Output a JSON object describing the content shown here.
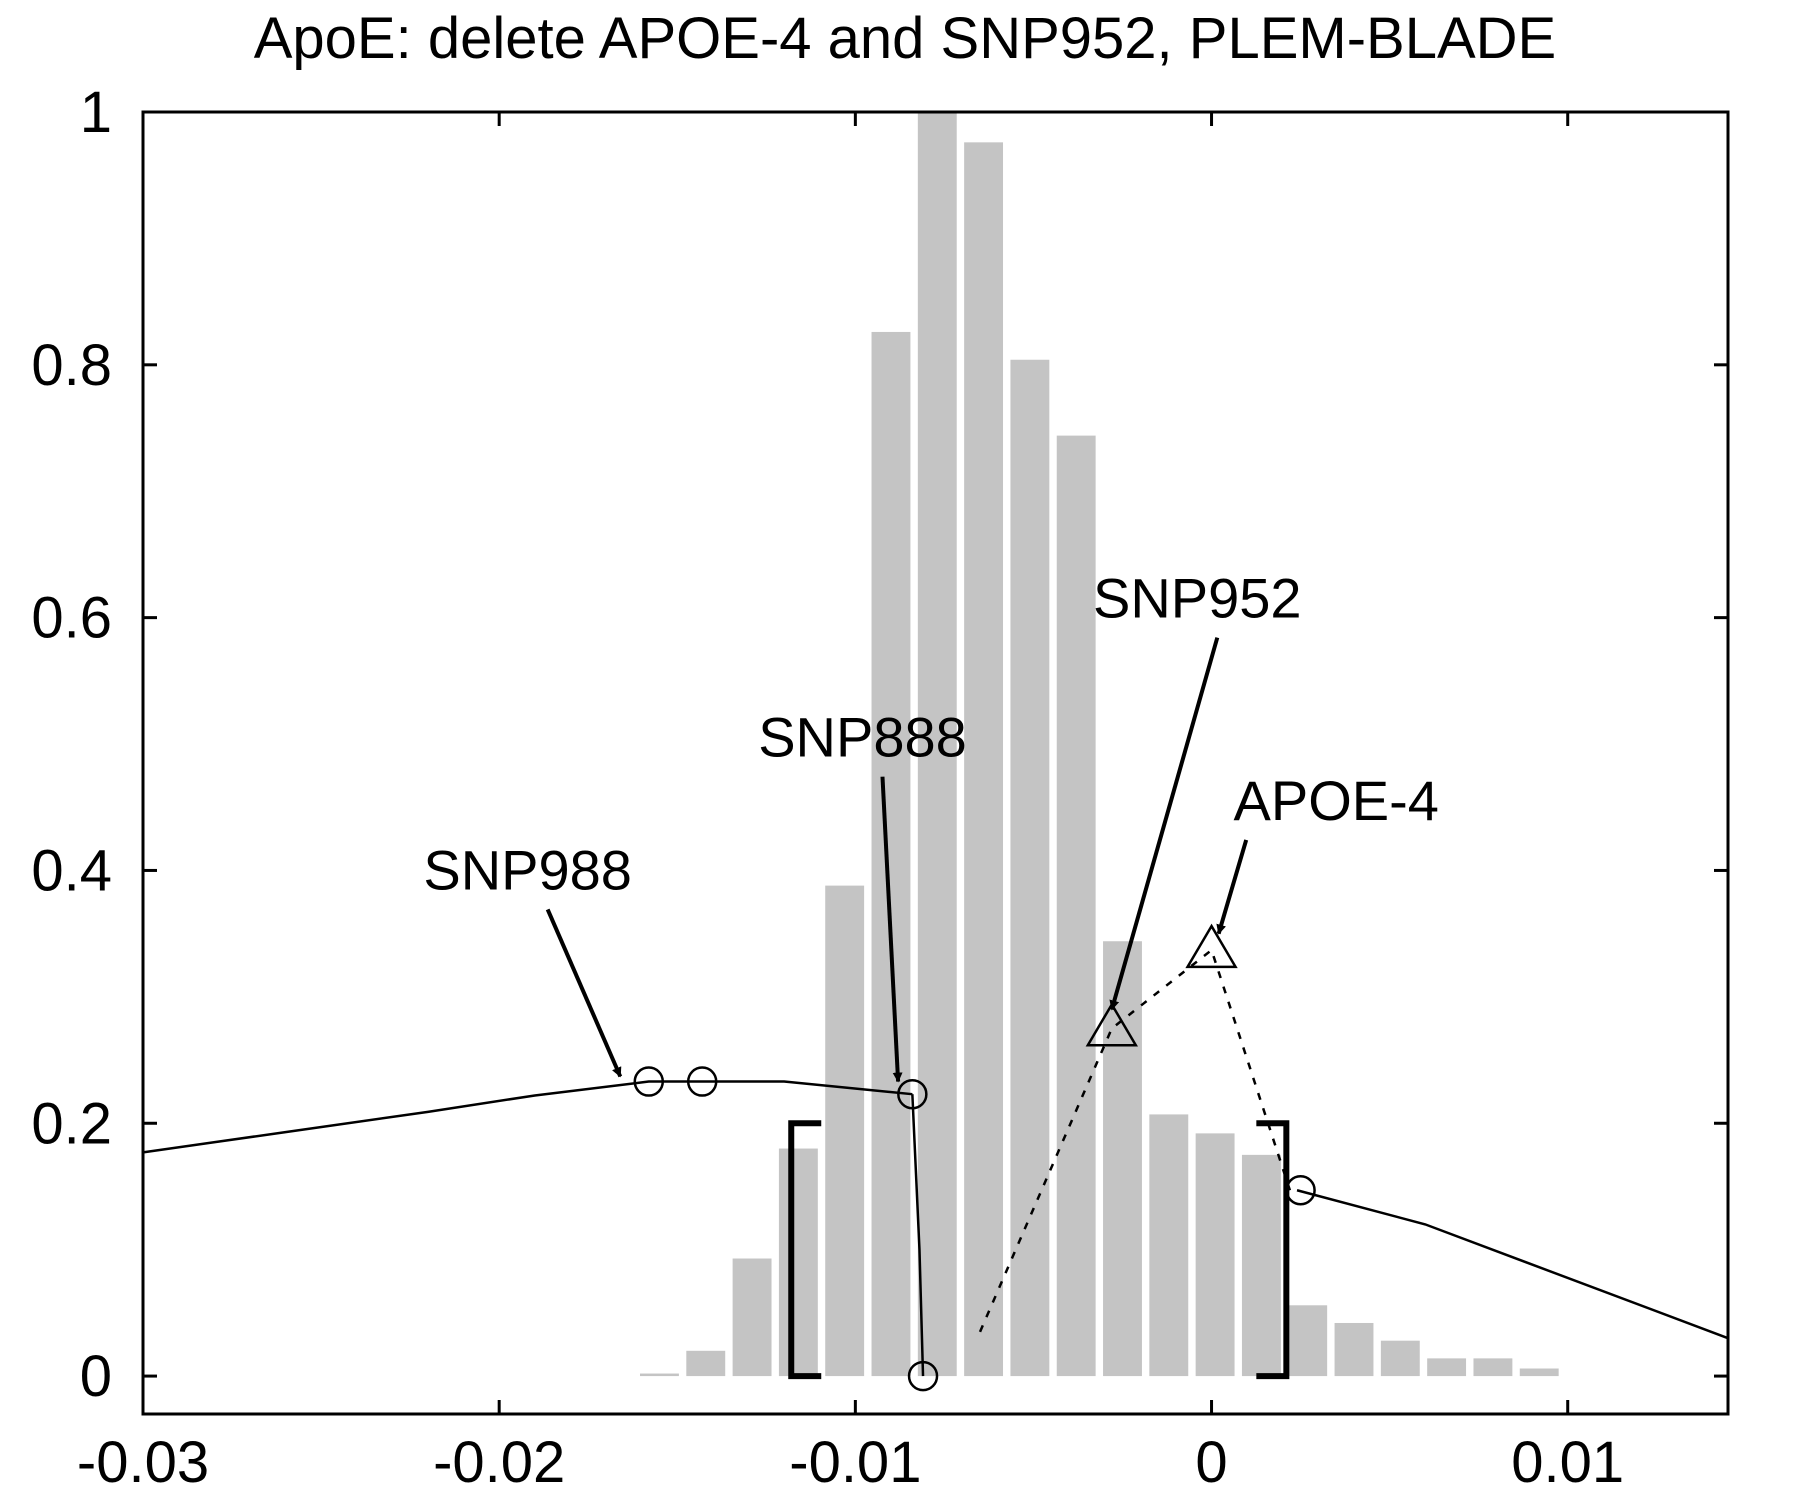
{
  "chart_data": {
    "type": "bar",
    "title": "ApoE: delete APOE-4 and SNP952, PLEM-BLADE",
    "xlabel": "",
    "ylabel": "",
    "xlim": [
      -0.03,
      0.0145
    ],
    "ylim": [
      -0.03,
      1.0
    ],
    "grid": false,
    "x_ticks": [
      {
        "value": -0.03,
        "label": "-0.03"
      },
      {
        "value": -0.02,
        "label": "-0.02"
      },
      {
        "value": -0.01,
        "label": "-0.01"
      },
      {
        "value": 0,
        "label": "0"
      },
      {
        "value": 0.01,
        "label": "0.01"
      }
    ],
    "y_ticks": [
      {
        "value": 0,
        "label": "0"
      },
      {
        "value": 0.2,
        "label": "0.2"
      },
      {
        "value": 0.4,
        "label": "0.4"
      },
      {
        "value": 0.6,
        "label": "0.6"
      },
      {
        "value": 0.8,
        "label": "0.8"
      },
      {
        "value": 1,
        "label": "1"
      }
    ],
    "histogram": {
      "color": "#c4c4c4",
      "bin_width": 0.0013,
      "bin_centers": [
        -0.0155,
        -0.0142,
        -0.0129,
        -0.0116,
        -0.0103,
        -0.009,
        -0.0077,
        -0.0064,
        -0.0051,
        -0.0038,
        -0.0025,
        -0.0012,
        0.0001,
        0.0014,
        0.0027,
        0.004,
        0.0053,
        0.0066,
        0.0079,
        0.0092
      ],
      "values": [
        0.002,
        0.02,
        0.093,
        0.18,
        0.388,
        0.826,
        1.0,
        0.976,
        0.804,
        0.744,
        0.344,
        0.207,
        0.192,
        0.175,
        0.056,
        0.042,
        0.028,
        0.014,
        0.014,
        0.006
      ]
    },
    "series": [
      {
        "style": "solid-line",
        "x": [
          -0.03,
          -0.026,
          -0.022,
          -0.019,
          -0.0158,
          -0.0143,
          -0.012,
          -0.0084
        ],
        "y": [
          0.177,
          0.193,
          0.209,
          0.222,
          0.233,
          0.233,
          0.233,
          0.223
        ]
      },
      {
        "style": "solid-line",
        "x": [
          -0.0084,
          -0.0082,
          -0.0081
        ],
        "y": [
          0.223,
          0.1,
          0.0
        ]
      },
      {
        "style": "dotted-line",
        "x": [
          -0.0065,
          -0.0028,
          0.0,
          0.0022
        ],
        "y": [
          0.035,
          0.275,
          0.337,
          0.147
        ]
      },
      {
        "style": "solid-line",
        "x": [
          0.0024,
          0.006,
          0.0145
        ],
        "y": [
          0.147,
          0.12,
          0.03
        ]
      }
    ],
    "markers": [
      {
        "shape": "circle",
        "x": -0.0158,
        "y": 0.233
      },
      {
        "shape": "circle",
        "x": -0.0143,
        "y": 0.233
      },
      {
        "shape": "circle",
        "x": -0.0084,
        "y": 0.223
      },
      {
        "shape": "circle",
        "x": -0.0081,
        "y": 0.0
      },
      {
        "shape": "circle",
        "x": 0.0025,
        "y": 0.147
      },
      {
        "shape": "triangle",
        "x": -0.0028,
        "y": 0.275
      },
      {
        "shape": "triangle",
        "x": 0.0,
        "y": 0.337
      }
    ],
    "brackets": [
      {
        "side": "left",
        "x": -0.0118,
        "y0": 0.0,
        "y1": 0.2
      },
      {
        "side": "right",
        "x": 0.0021,
        "y0": 0.0,
        "y1": 0.2
      }
    ],
    "annotations": [
      {
        "text": "SNP988",
        "label_x": -0.0192,
        "label_y": 0.385,
        "tip_x": -0.0166,
        "tip_y": 0.237
      },
      {
        "text": "SNP888",
        "label_x": -0.0098,
        "label_y": 0.49,
        "tip_x": -0.0088,
        "tip_y": 0.233
      },
      {
        "text": "SNP952",
        "label_x": -0.0004,
        "label_y": 0.6,
        "tip_x": -0.0028,
        "tip_y": 0.29
      },
      {
        "text": "APOE-4",
        "label_x": 0.0035,
        "label_y": 0.44,
        "tip_x": 0.0002,
        "tip_y": 0.35
      }
    ]
  }
}
